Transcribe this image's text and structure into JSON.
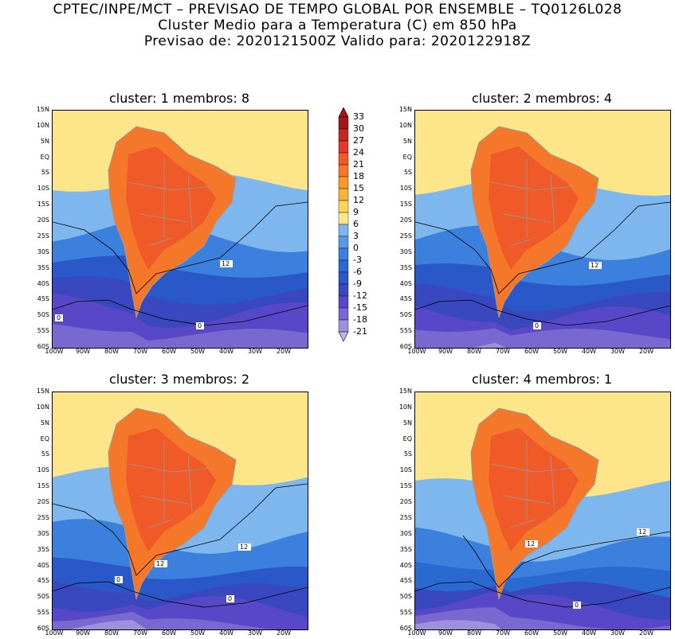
{
  "header": {
    "line1": "CPTEC/INPE/MCT – PREVISAO DE TEMPO GLOBAL POR ENSEMBLE – TQ0126L028",
    "line2": "Cluster Medio para a Temperatura (C) em 850 hPa",
    "line3": "Previsao de: 2020121500Z   Valido para: 2020122918Z"
  },
  "axes": {
    "lat_labels": [
      "15N",
      "10N",
      "5N",
      "EQ",
      "5S",
      "10S",
      "15S",
      "20S",
      "25S",
      "30S",
      "35S",
      "40S",
      "45S",
      "50S",
      "55S",
      "60S"
    ],
    "lon_labels": [
      "100W",
      "90W",
      "80W",
      "70W",
      "60W",
      "50W",
      "40W",
      "30W",
      "20W"
    ]
  },
  "colorbar": {
    "labels": [
      "33",
      "30",
      "27",
      "24",
      "21",
      "18",
      "15",
      "12",
      "9",
      "6",
      "3",
      "0",
      "-3",
      "-6",
      "-9",
      "-12",
      "-15",
      "-18",
      "-21"
    ],
    "colors": [
      "#a01818",
      "#c0282a",
      "#e03a2a",
      "#f05a28",
      "#f5782a",
      "#f89a2a",
      "#f6b43a",
      "#fbd65a",
      "#fde58a",
      "#7eb6ee",
      "#5a9ae4",
      "#3a80dc",
      "#2a6ad0",
      "#2a58c8",
      "#3a48c0",
      "#5848c8",
      "#7868d0",
      "#a090dc",
      "#c0b4e8"
    ],
    "contour_colors": {
      "land_border": "#9a9a9a",
      "contour": "#000000"
    }
  },
  "panels": [
    {
      "title": "cluster: 1   membros: 8",
      "contour_labels": [
        "12",
        "0",
        "0"
      ]
    },
    {
      "title": "cluster: 2   membros: 4",
      "contour_labels": [
        "12",
        "0"
      ]
    },
    {
      "title": "cluster: 3   membros: 2",
      "contour_labels": [
        "12",
        "12",
        "0",
        "0"
      ]
    },
    {
      "title": "cluster: 4   membros: 1",
      "contour_labels": [
        "12",
        "12",
        "0"
      ]
    }
  ]
}
